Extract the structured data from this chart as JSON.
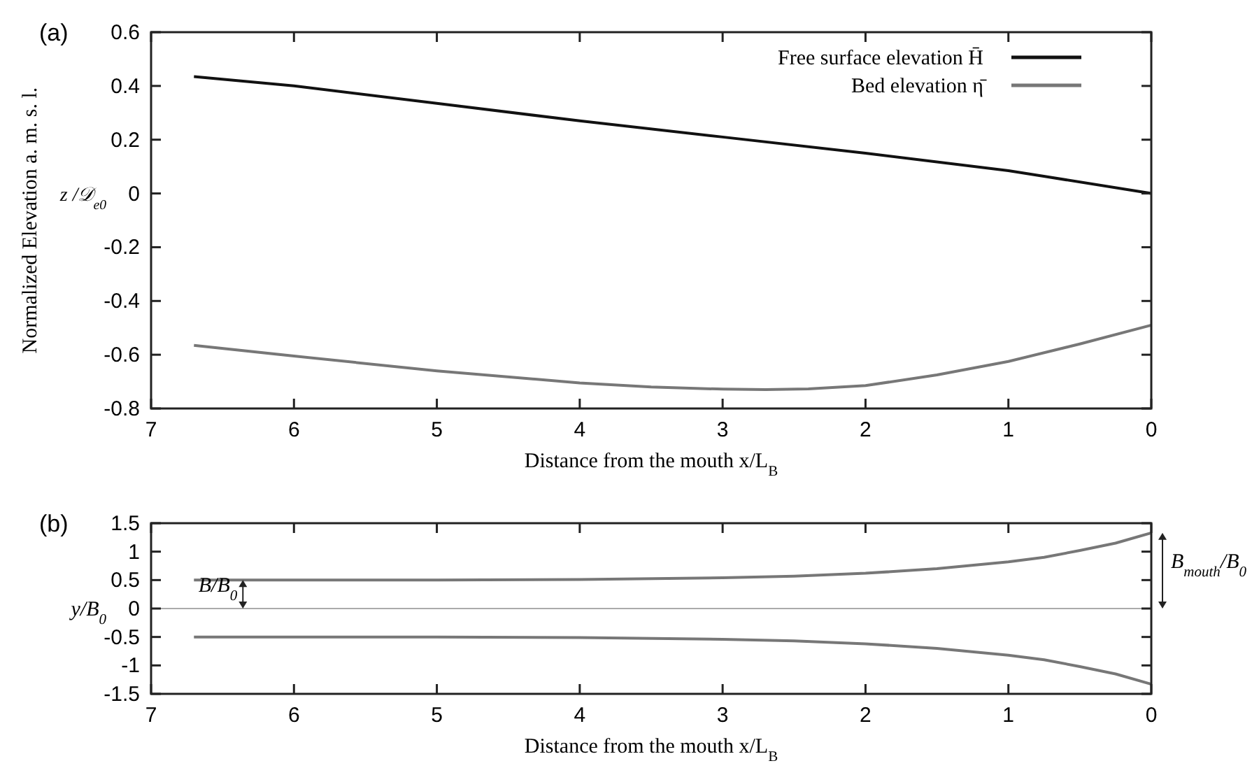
{
  "chart_data": [
    {
      "type": "line",
      "title": "(a)",
      "xlabel": "Distance from the mouth x/L$_{B}$",
      "ylabel": "Normalized Elevation a. m. s. l.",
      "annotations": [
        "z /𝒟$_{e0}$"
      ],
      "xlim": [
        7,
        0
      ],
      "xticks": [
        7,
        6,
        5,
        4,
        3,
        2,
        1,
        0
      ],
      "ylim": [
        -0.8,
        0.6
      ],
      "yticks": [
        0.6,
        0.4,
        0.2,
        0,
        -0.2,
        -0.4,
        -0.6,
        -0.8
      ],
      "legend": "top right",
      "grid": false,
      "line_style": "solid",
      "series": [
        {
          "name": "Free surface elevation H̄",
          "color": "#111111",
          "x": [
            6.7,
            6,
            5,
            4,
            3,
            2,
            1,
            0
          ],
          "values": [
            0.435,
            0.4,
            0.335,
            0.27,
            0.21,
            0.15,
            0.085,
            0.0
          ]
        },
        {
          "name": "Bed elevation  η̄",
          "color": "#777777",
          "x": [
            6.7,
            6,
            5,
            4,
            3.5,
            3,
            2.7,
            2.4,
            2,
            1.5,
            1,
            0.5,
            0
          ],
          "values": [
            -0.565,
            -0.605,
            -0.66,
            -0.705,
            -0.72,
            -0.728,
            -0.73,
            -0.727,
            -0.715,
            -0.675,
            -0.625,
            -0.56,
            -0.49
          ]
        }
      ]
    },
    {
      "type": "line",
      "title": "(b)",
      "xlabel": "Distance from the mouth x/L$_{B}$",
      "ylabel": "y/B$_{0}$",
      "annotations": [
        "B/B$_{0}$",
        "B$_{mouth}$/B$_{0}$"
      ],
      "xlim": [
        7,
        0
      ],
      "xticks": [
        7,
        6,
        5,
        4,
        3,
        2,
        1,
        0
      ],
      "ylim": [
        -1.5,
        1.5
      ],
      "yticks": [
        1.5,
        1,
        0.5,
        0,
        -0.5,
        -1,
        -1.5
      ],
      "legend": false,
      "grid": false,
      "line_style": "solid",
      "ref_lines": [
        {
          "axis": "y",
          "value": 0,
          "color": "#aaaaaa"
        }
      ],
      "series": [
        {
          "color": "#777777",
          "x": [
            6.7,
            6,
            5,
            4,
            3,
            2.5,
            2,
            1.5,
            1,
            0.75,
            0.5,
            0.25,
            0
          ],
          "values": [
            0.5,
            0.5,
            0.5,
            0.51,
            0.54,
            0.57,
            0.62,
            0.7,
            0.82,
            0.9,
            1.02,
            1.15,
            1.33
          ]
        },
        {
          "color": "#777777",
          "x": [
            6.7,
            6,
            5,
            4,
            3,
            2.5,
            2,
            1.5,
            1,
            0.75,
            0.5,
            0.25,
            0
          ],
          "values": [
            -0.5,
            -0.5,
            -0.5,
            -0.51,
            -0.54,
            -0.57,
            -0.62,
            -0.7,
            -0.82,
            -0.9,
            -1.02,
            -1.15,
            -1.33
          ]
        }
      ]
    }
  ]
}
